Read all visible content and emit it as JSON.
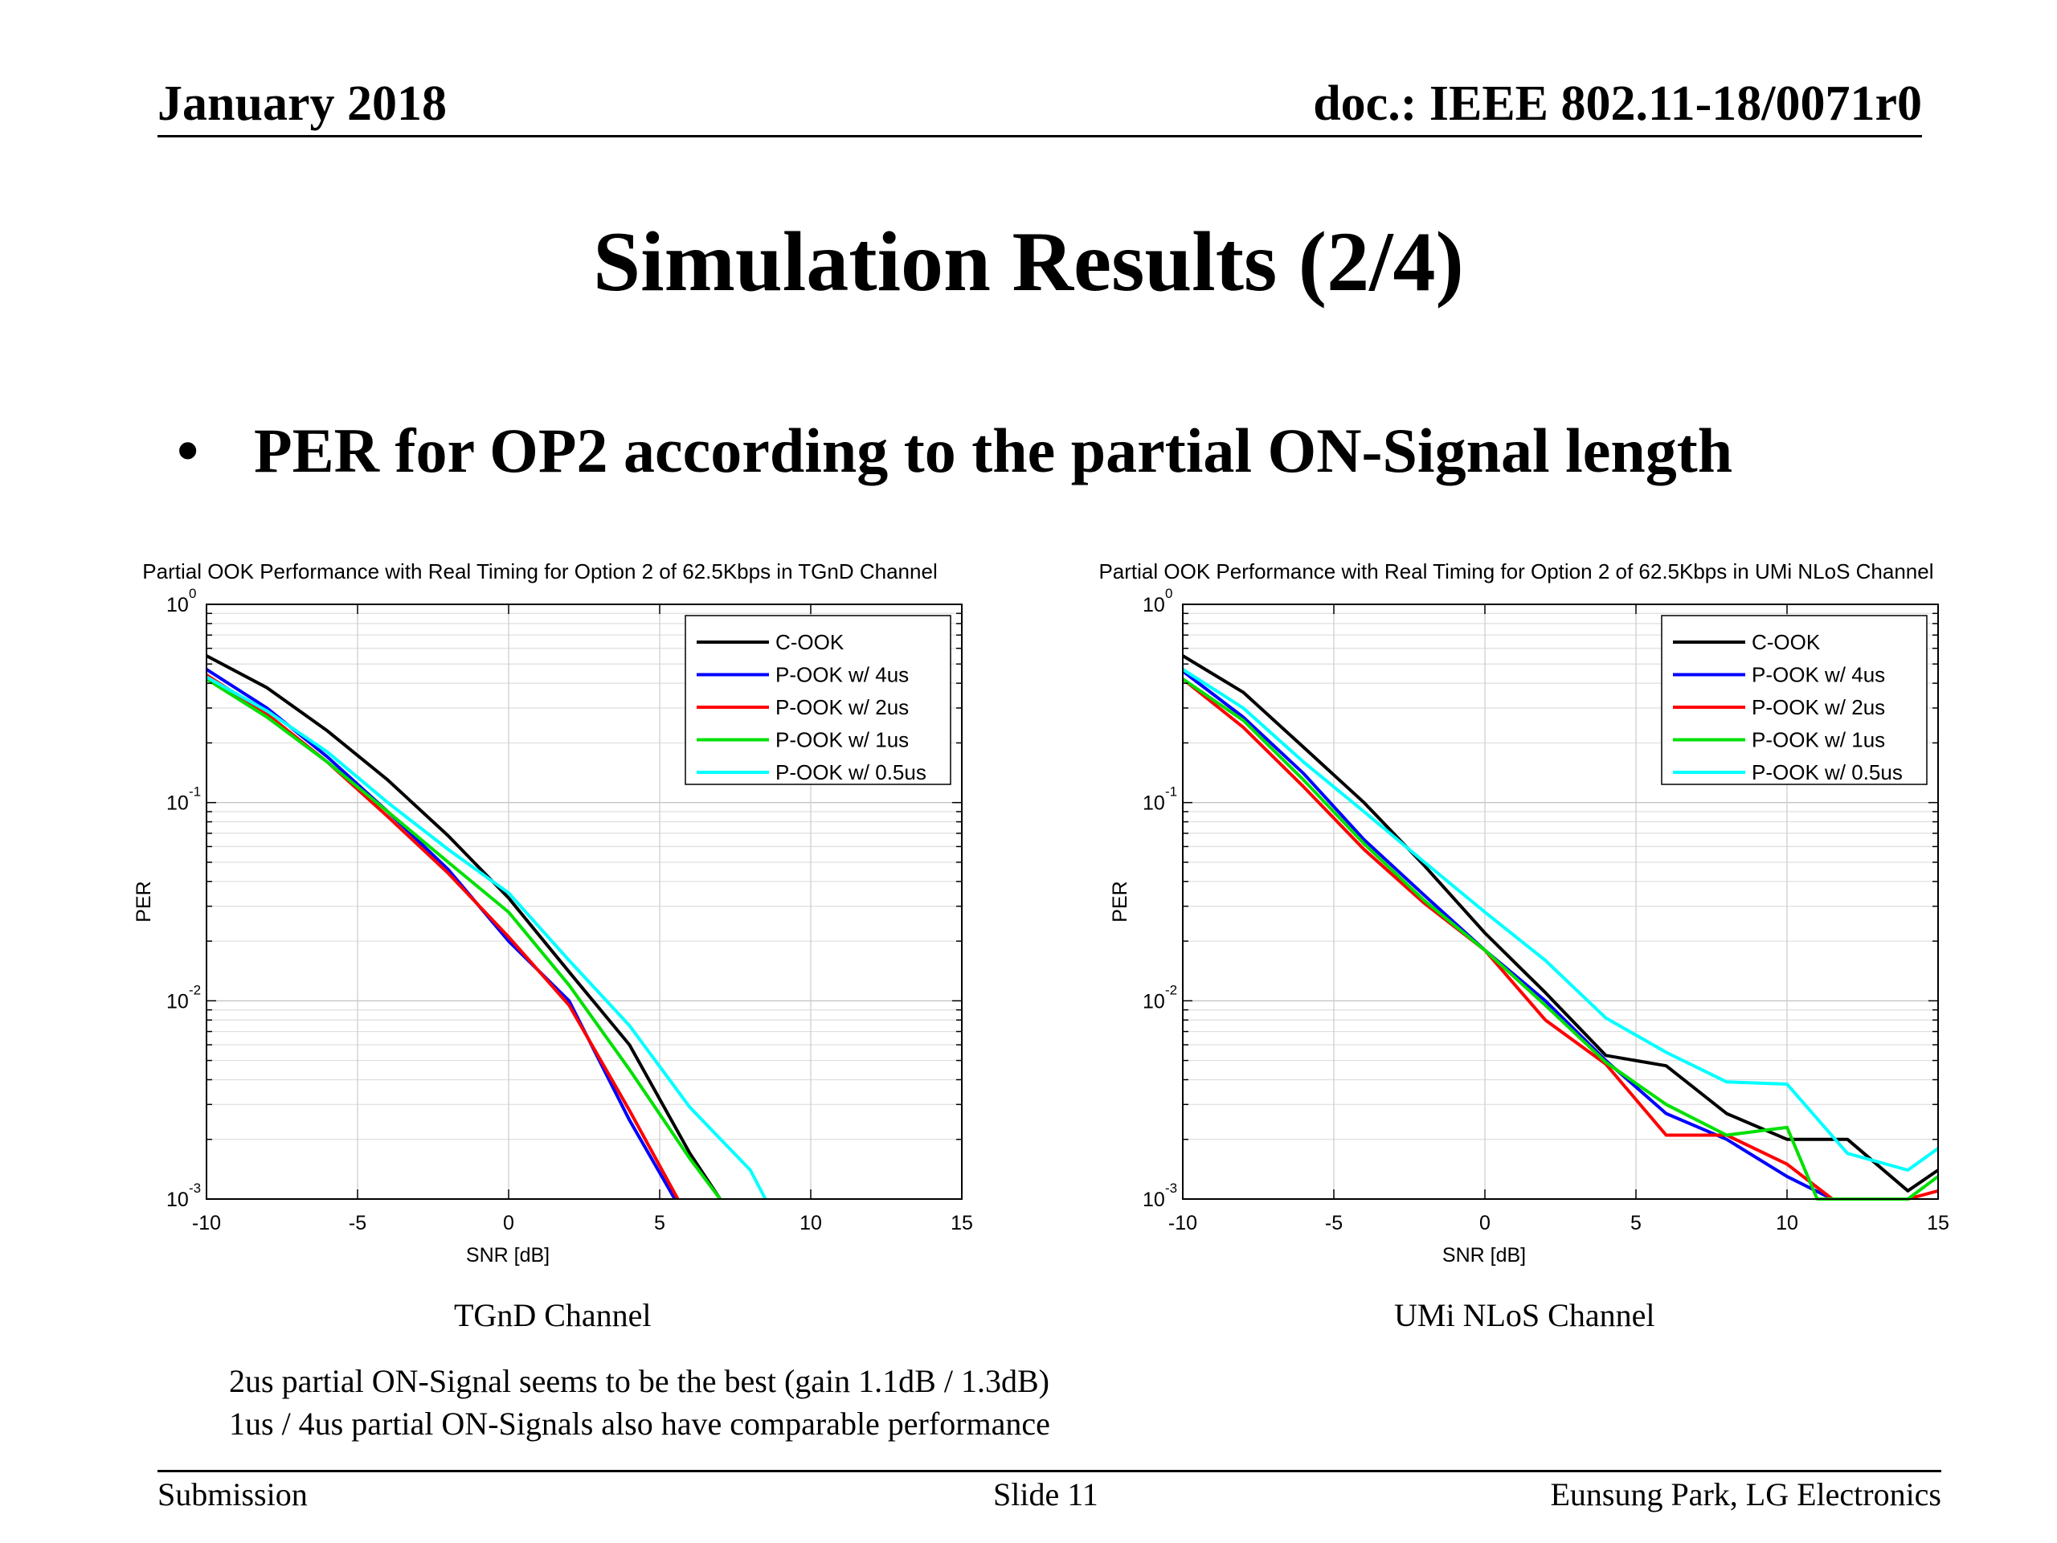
{
  "header": {
    "date": "January 2018",
    "doc_id": "doc.: IEEE 802.11-18/0071r0"
  },
  "title": "Simulation Results (2/4)",
  "bullet": {
    "symbol": "•",
    "text": "PER for OP2 according to the partial ON-Signal length"
  },
  "captions": {
    "left": "TGnD Channel",
    "right": "UMi NLoS Channel"
  },
  "notes": [
    "2us partial ON-Signal seems to be the best (gain 1.1dB / 1.3dB)",
    "1us / 4us partial ON-Signals also have comparable performance"
  ],
  "footer": {
    "left": "Submission",
    "center": "Slide 11",
    "right": "Eunsung Park, LG Electronics"
  },
  "chart_data": [
    {
      "type": "line",
      "title": "Partial OOK Performance with Real Timing for Option 2 of 62.5Kbps in TGnD Channel",
      "xlabel": "SNR [dB]",
      "ylabel": "PER",
      "xlim": [
        -10,
        15
      ],
      "ylim": [
        0.001,
        1
      ],
      "yscale": "log",
      "grid": true,
      "legend_position": "top-right",
      "x_ticks": [
        "-10",
        "-5",
        "0",
        "5",
        "10",
        "15"
      ],
      "y_ticks": [
        {
          "base": "10",
          "exp": "0"
        },
        {
          "base": "10",
          "exp": "-1"
        },
        {
          "base": "10",
          "exp": "-2"
        },
        {
          "base": "10",
          "exp": "-3"
        }
      ],
      "series": [
        {
          "name": "C-OOK",
          "color": "#000000",
          "x": [
            -10,
            -8,
            -6,
            -4,
            -2,
            0,
            2,
            4,
            6,
            7
          ],
          "y": [
            0.55,
            0.38,
            0.23,
            0.13,
            0.068,
            0.033,
            0.014,
            0.006,
            0.0017,
            0.001
          ]
        },
        {
          "name": "P-OOK w/ 4us",
          "color": "#0000ff",
          "x": [
            -10,
            -8,
            -6,
            -4,
            -2,
            0,
            2,
            4,
            5.5
          ],
          "y": [
            0.47,
            0.3,
            0.17,
            0.09,
            0.046,
            0.02,
            0.01,
            0.0025,
            0.001
          ]
        },
        {
          "name": "P-OOK w/ 2us",
          "color": "#ff0000",
          "x": [
            -10,
            -8,
            -6,
            -4,
            -2,
            0,
            2,
            4,
            5.6
          ],
          "y": [
            0.44,
            0.28,
            0.16,
            0.085,
            0.044,
            0.021,
            0.0095,
            0.0028,
            0.001
          ]
        },
        {
          "name": "P-OOK w/ 1us",
          "color": "#00e000",
          "x": [
            -10,
            -8,
            -6,
            -4,
            -2,
            0,
            2,
            4,
            6,
            7
          ],
          "y": [
            0.42,
            0.27,
            0.16,
            0.09,
            0.05,
            0.028,
            0.012,
            0.0045,
            0.0016,
            0.001
          ]
        },
        {
          "name": "P-OOK w/ 0.5us",
          "color": "#00ffff",
          "x": [
            -10,
            -8,
            -6,
            -4,
            -2,
            0,
            2,
            4,
            6,
            8,
            8.5
          ],
          "y": [
            0.43,
            0.29,
            0.18,
            0.1,
            0.058,
            0.035,
            0.016,
            0.0075,
            0.0029,
            0.0014,
            0.001
          ]
        }
      ]
    },
    {
      "type": "line",
      "title": "Partial OOK Performance with Real Timing for Option 2 of 62.5Kbps in UMi NLoS Channel",
      "xlabel": "SNR [dB]",
      "ylabel": "PER",
      "xlim": [
        -10,
        15
      ],
      "ylim": [
        0.001,
        1
      ],
      "yscale": "log",
      "grid": true,
      "legend_position": "top-right",
      "x_ticks": [
        "-10",
        "-5",
        "0",
        "5",
        "10",
        "15"
      ],
      "y_ticks": [
        {
          "base": "10",
          "exp": "0"
        },
        {
          "base": "10",
          "exp": "-1"
        },
        {
          "base": "10",
          "exp": "-2"
        },
        {
          "base": "10",
          "exp": "-3"
        }
      ],
      "series": [
        {
          "name": "C-OOK",
          "color": "#000000",
          "x": [
            -10,
            -8,
            -6,
            -4,
            -2,
            0,
            2,
            4,
            6,
            8,
            10,
            12,
            14,
            15
          ],
          "y": [
            0.55,
            0.36,
            0.19,
            0.1,
            0.048,
            0.022,
            0.011,
            0.0053,
            0.0047,
            0.0027,
            0.002,
            0.002,
            0.0011,
            0.0014
          ]
        },
        {
          "name": "P-OOK w/ 4us",
          "color": "#0000ff",
          "x": [
            -10,
            -8,
            -6,
            -4,
            -2,
            0,
            2,
            4,
            6,
            8,
            10,
            11.5
          ],
          "y": [
            0.46,
            0.27,
            0.14,
            0.065,
            0.034,
            0.018,
            0.01,
            0.005,
            0.0027,
            0.002,
            0.0013,
            0.001
          ]
        },
        {
          "name": "P-OOK w/ 2us",
          "color": "#ff0000",
          "x": [
            -10,
            -8,
            -6,
            -4,
            -2,
            0,
            2,
            4,
            6,
            8,
            10,
            11.5,
            14,
            15
          ],
          "y": [
            0.42,
            0.24,
            0.12,
            0.058,
            0.031,
            0.018,
            0.008,
            0.0048,
            0.0021,
            0.0021,
            0.0015,
            0.001,
            0.001,
            0.0011
          ]
        },
        {
          "name": "P-OOK w/ 1us",
          "color": "#00e000",
          "x": [
            -10,
            -8,
            -6,
            -4,
            -2,
            0,
            2,
            4,
            6,
            8,
            10,
            11,
            12,
            14,
            15
          ],
          "y": [
            0.42,
            0.26,
            0.13,
            0.062,
            0.032,
            0.018,
            0.0095,
            0.0049,
            0.003,
            0.0021,
            0.0023,
            0.001,
            0.001,
            0.001,
            0.0013
          ]
        },
        {
          "name": "P-OOK w/ 0.5us",
          "color": "#00ffff",
          "x": [
            -10,
            -8,
            -6,
            -4,
            -2,
            0,
            2,
            4,
            6,
            8,
            10,
            12,
            14,
            15
          ],
          "y": [
            0.47,
            0.3,
            0.16,
            0.09,
            0.05,
            0.028,
            0.016,
            0.0082,
            0.0055,
            0.0039,
            0.0038,
            0.0017,
            0.0014,
            0.0018
          ]
        }
      ]
    }
  ]
}
